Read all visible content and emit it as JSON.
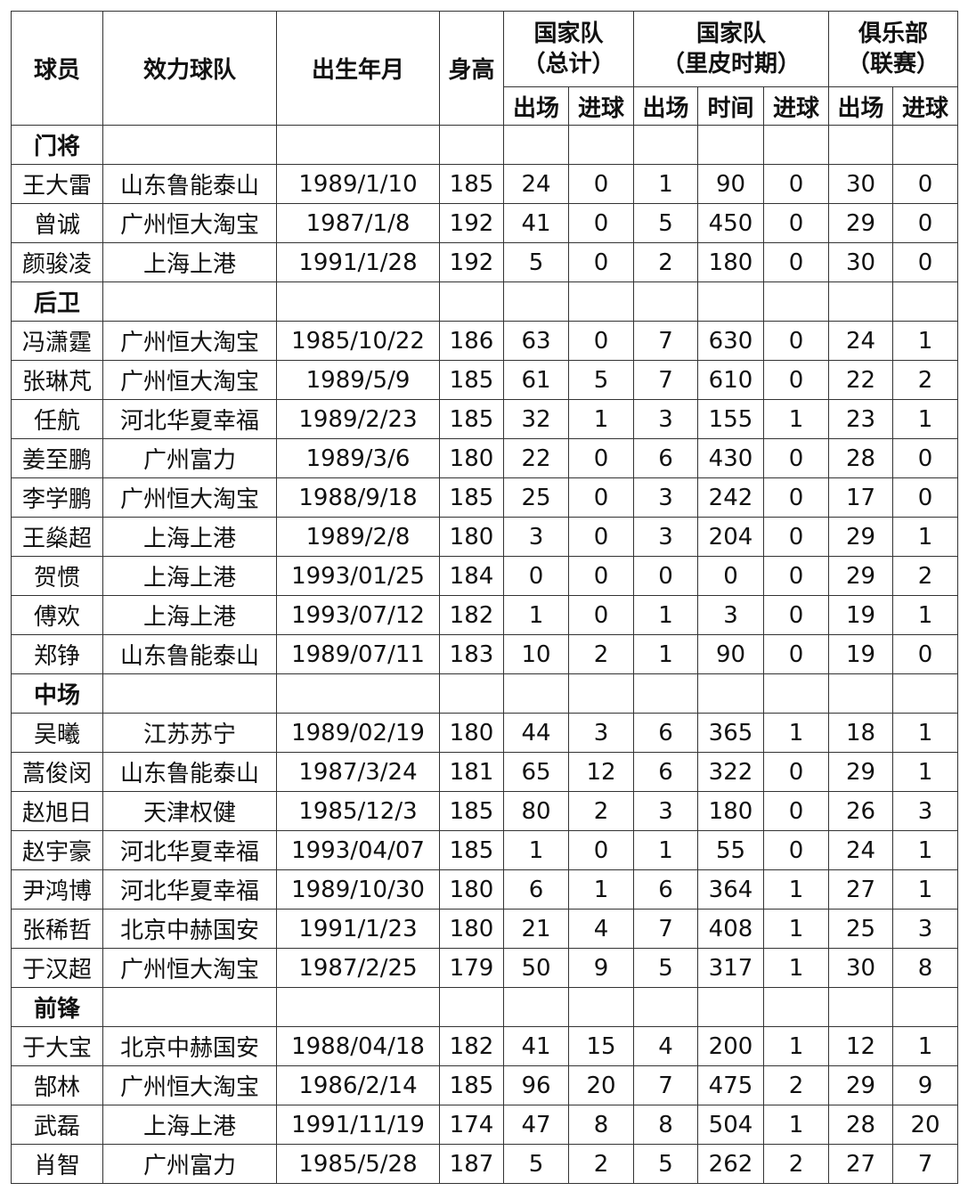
{
  "header": {
    "columns": [
      "球员",
      "效力球队",
      "出生年月",
      "身高"
    ],
    "groups": [
      {
        "title": [
          "国家队",
          "（总计）"
        ],
        "sub": [
          "出场",
          "进球"
        ]
      },
      {
        "title": [
          "国家队",
          "（里皮时期）"
        ],
        "sub": [
          "出场",
          "时间",
          "进球"
        ]
      },
      {
        "title": [
          "俱乐部",
          "（联赛）"
        ],
        "sub": [
          "出场",
          "进球"
        ]
      }
    ]
  },
  "sections": [
    {
      "name": "门将",
      "rows": [
        [
          "王大雷",
          "山东鲁能泰山",
          "1989/1/10",
          185,
          24,
          0,
          1,
          90,
          0,
          30,
          0
        ],
        [
          "曾诚",
          "广州恒大淘宝",
          "1987/1/8",
          192,
          41,
          0,
          5,
          450,
          0,
          29,
          0
        ],
        [
          "颜骏凌",
          "上海上港",
          "1991/1/28",
          192,
          5,
          0,
          2,
          180,
          0,
          30,
          0
        ]
      ]
    },
    {
      "name": "后卫",
      "rows": [
        [
          "冯潇霆",
          "广州恒大淘宝",
          "1985/10/22",
          186,
          63,
          0,
          7,
          630,
          0,
          24,
          1
        ],
        [
          "张琳芃",
          "广州恒大淘宝",
          "1989/5/9",
          185,
          61,
          5,
          7,
          610,
          0,
          22,
          2
        ],
        [
          "任航",
          "河北华夏幸福",
          "1989/2/23",
          185,
          32,
          1,
          3,
          155,
          1,
          23,
          1
        ],
        [
          "姜至鹏",
          "广州富力",
          "1989/3/6",
          180,
          22,
          0,
          6,
          430,
          0,
          28,
          0
        ],
        [
          "李学鹏",
          "广州恒大淘宝",
          "1988/9/18",
          185,
          25,
          0,
          3,
          242,
          0,
          17,
          0
        ],
        [
          "王燊超",
          "上海上港",
          "1989/2/8",
          180,
          3,
          0,
          3,
          204,
          0,
          29,
          1
        ],
        [
          "贺惯",
          "上海上港",
          "1993/01/25",
          184,
          0,
          0,
          0,
          0,
          0,
          29,
          2
        ],
        [
          "傅欢",
          "上海上港",
          "1993/07/12",
          182,
          1,
          0,
          1,
          3,
          0,
          19,
          1
        ],
        [
          "郑铮",
          "山东鲁能泰山",
          "1989/07/11",
          183,
          10,
          2,
          1,
          90,
          0,
          19,
          0
        ]
      ]
    },
    {
      "name": "中场",
      "rows": [
        [
          "吴曦",
          "江苏苏宁",
          "1989/02/19",
          180,
          44,
          3,
          6,
          365,
          1,
          18,
          1
        ],
        [
          "蒿俊闵",
          "山东鲁能泰山",
          "1987/3/24",
          181,
          65,
          12,
          6,
          322,
          0,
          29,
          1
        ],
        [
          "赵旭日",
          "天津权健",
          "1985/12/3",
          185,
          80,
          2,
          3,
          180,
          0,
          26,
          3
        ],
        [
          "赵宇豪",
          "河北华夏幸福",
          "1993/04/07",
          185,
          1,
          0,
          1,
          55,
          0,
          24,
          1
        ],
        [
          "尹鸿博",
          "河北华夏幸福",
          "1989/10/30",
          180,
          6,
          1,
          6,
          364,
          1,
          27,
          1
        ],
        [
          "张稀哲",
          "北京中赫国安",
          "1991/1/23",
          180,
          21,
          4,
          7,
          408,
          1,
          25,
          3
        ],
        [
          "于汉超",
          "广州恒大淘宝",
          "1987/2/25",
          179,
          50,
          9,
          5,
          317,
          1,
          30,
          8
        ]
      ]
    },
    {
      "name": "前锋",
      "rows": [
        [
          "于大宝",
          "北京中赫国安",
          "1988/04/18",
          182,
          41,
          15,
          4,
          200,
          1,
          12,
          1
        ],
        [
          "郜林",
          "广州恒大淘宝",
          "1986/2/14",
          185,
          96,
          20,
          7,
          475,
          2,
          29,
          9
        ],
        [
          "武磊",
          "上海上港",
          "1991/11/19",
          174,
          47,
          8,
          8,
          504,
          1,
          28,
          20
        ],
        [
          "肖智",
          "广州富力",
          "1985/5/28",
          187,
          5,
          2,
          5,
          262,
          2,
          27,
          7
        ]
      ]
    }
  ]
}
